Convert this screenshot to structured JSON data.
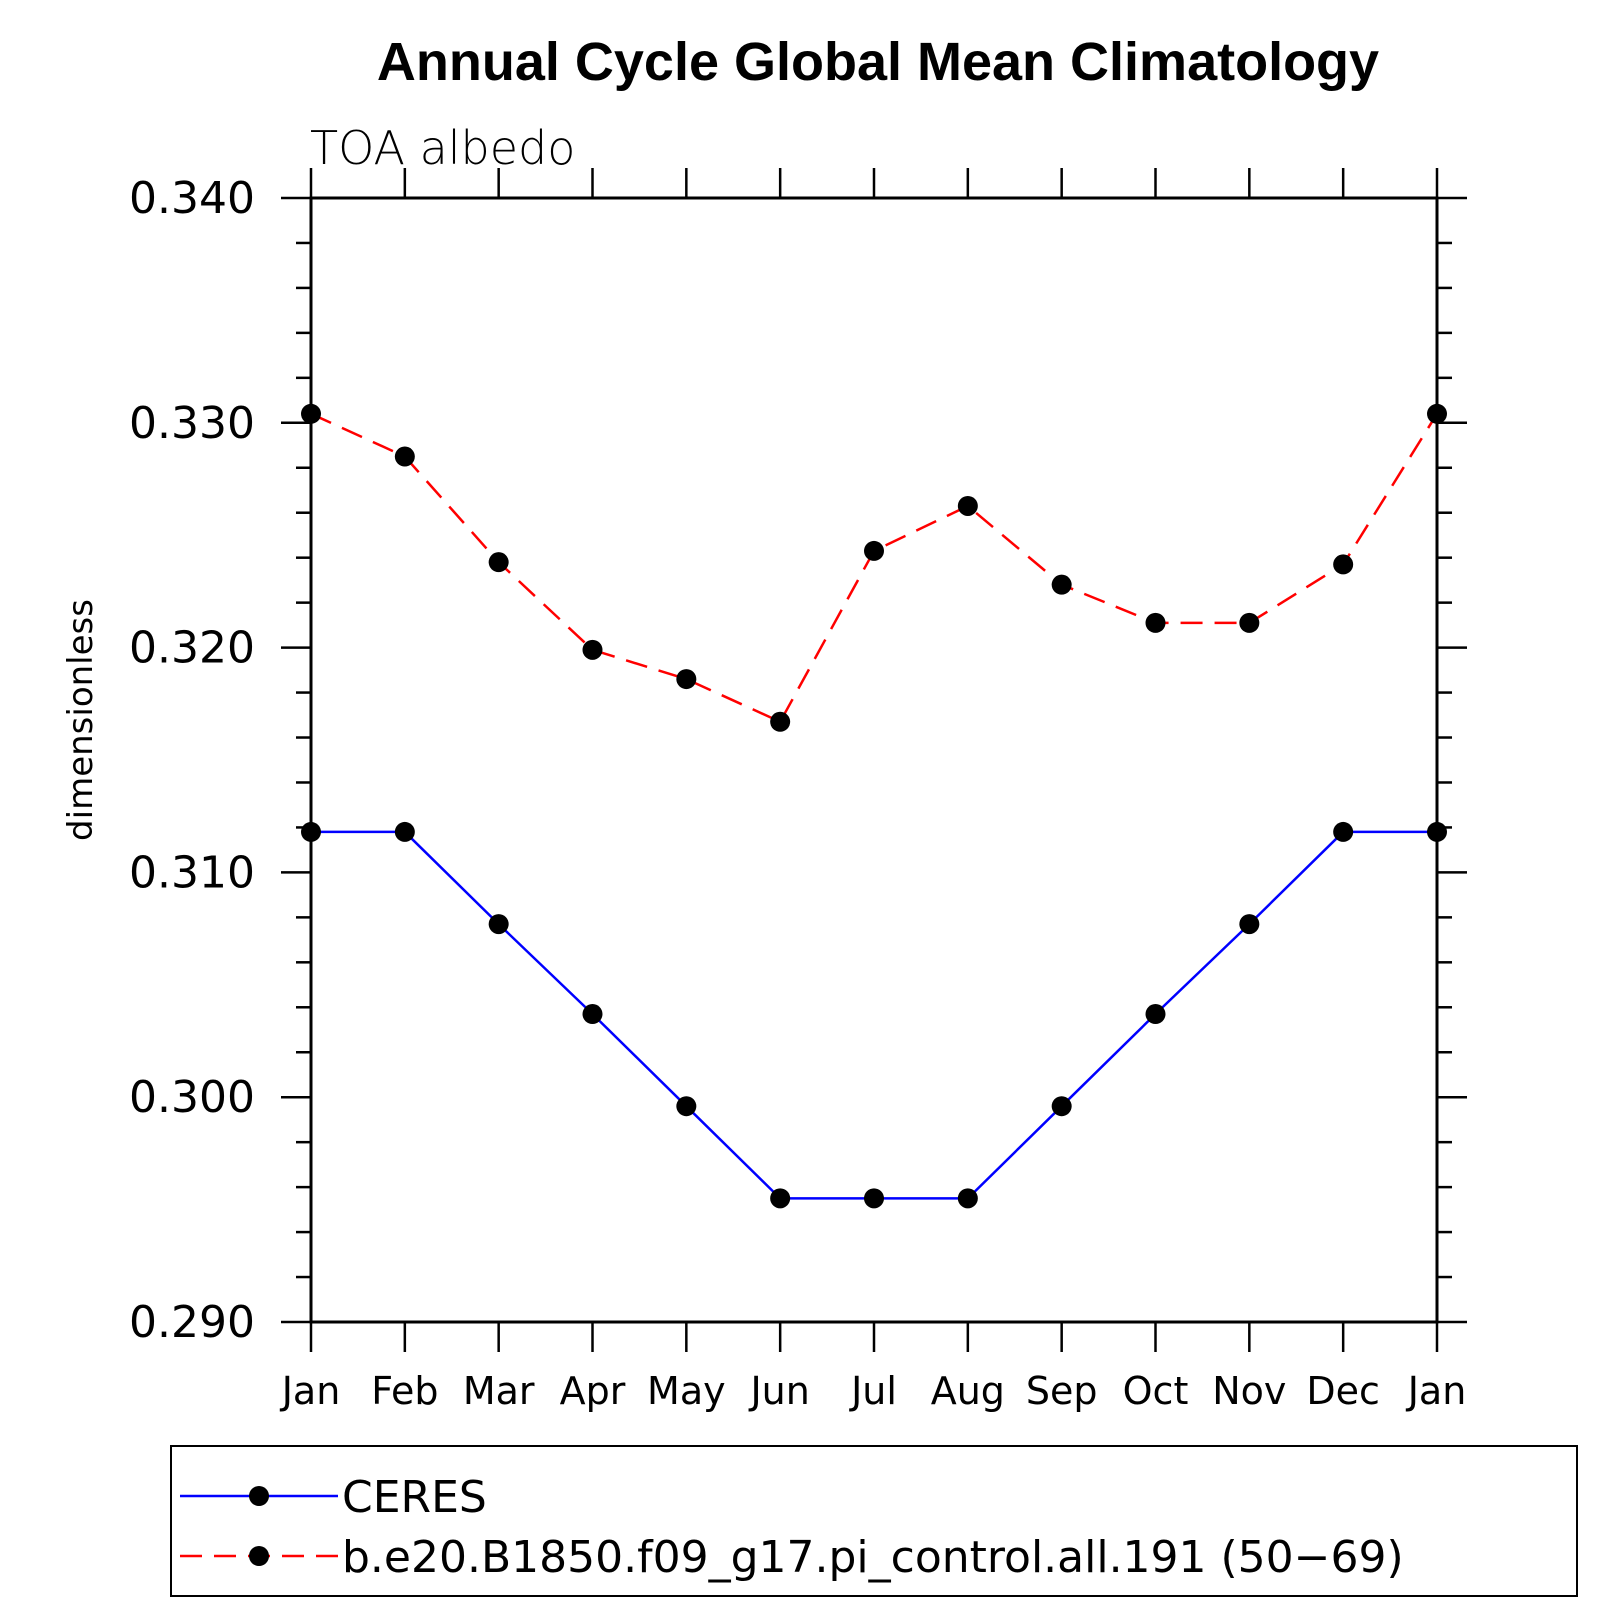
{
  "chart_data": {
    "type": "line",
    "title": "Annual Cycle Global Mean Climatology",
    "subtitle": "TOA albedo",
    "ylabel": "dimensionless",
    "xlabel": "",
    "categories": [
      "Jan",
      "Feb",
      "Mar",
      "Apr",
      "May",
      "Jun",
      "Jul",
      "Aug",
      "Sep",
      "Oct",
      "Nov",
      "Dec",
      "Jan"
    ],
    "ylim": [
      0.29,
      0.34
    ],
    "yticks": [
      "0.290",
      "0.300",
      "0.310",
      "0.320",
      "0.330",
      "0.340"
    ],
    "grid": false,
    "legend_position": "bottom",
    "series": [
      {
        "name": "CERES",
        "color": "#0000ff",
        "dash": "solid",
        "values": [
          0.3118,
          0.3118,
          0.3077,
          0.3037,
          0.2996,
          0.2955,
          0.2955,
          0.2955,
          0.2996,
          0.3037,
          0.3077,
          0.3118,
          0.3118
        ]
      },
      {
        "name": "b.e20.B1850.f09_g17.pi_control.all.191 (50−69)",
        "color": "#ff0000",
        "dash": "dashed",
        "values": [
          0.3304,
          0.3285,
          0.3238,
          0.3199,
          0.3186,
          0.3167,
          0.3243,
          0.3263,
          0.3228,
          0.3211,
          0.3211,
          0.3237,
          0.3304
        ]
      }
    ]
  }
}
